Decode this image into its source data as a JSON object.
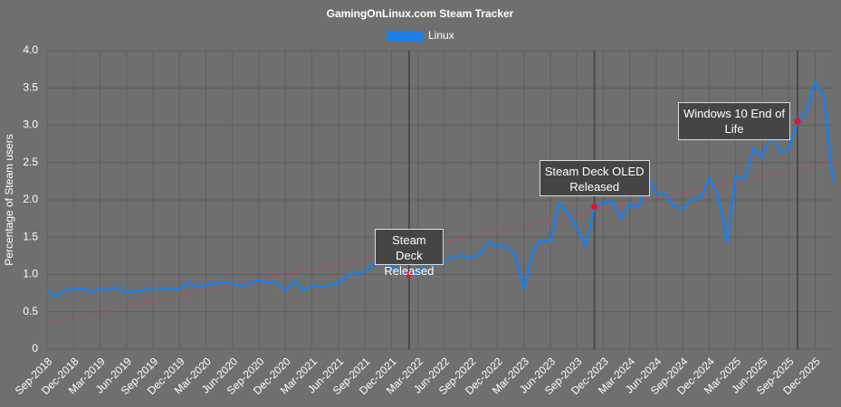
{
  "chart_data": {
    "type": "line",
    "title": "GamingOnLinux.com Steam Tracker",
    "y_label": "Percentage of Steam users",
    "categories": [
      "Sep-2018",
      null,
      null,
      "Dec-2018",
      null,
      null,
      "Mar-2019",
      null,
      null,
      "Jun-2019",
      null,
      null,
      "Sep-2019",
      null,
      null,
      "Dec-2019",
      null,
      null,
      "Mar-2020",
      null,
      null,
      "Jun-2020",
      null,
      null,
      "Sep-2020",
      null,
      null,
      "Dec-2020",
      null,
      null,
      "Mar-2021",
      null,
      null,
      "Jun-2021",
      null,
      null,
      "Sep-2021",
      null,
      null,
      "Dec-2021",
      null,
      null,
      "Mar-2022",
      null,
      null,
      "Jun-2022",
      null,
      null,
      "Sep-2022",
      null,
      null,
      "Dec-2022",
      null,
      null,
      "Mar-2023",
      null,
      null,
      "Jun-2023",
      null,
      null,
      "Sep-2023",
      null,
      null,
      "Dec-2023",
      null,
      null,
      "Mar-2024",
      null,
      null,
      "Jun-2024",
      null,
      null,
      "Sep-2024",
      null,
      null,
      "Dec-2024",
      null,
      null,
      "Mar-2025",
      null,
      null,
      "Jun-2025",
      null,
      null,
      "Sep-2025",
      null,
      null,
      "Dec-2025",
      null,
      null
    ],
    "series": [
      {
        "name": "Linux",
        "color": "#1a7fe8",
        "values": [
          0.77,
          0.71,
          0.79,
          0.81,
          0.81,
          0.76,
          0.81,
          0.8,
          0.83,
          0.75,
          0.78,
          0.79,
          0.82,
          0.82,
          0.8,
          0.81,
          0.89,
          0.83,
          0.86,
          0.88,
          0.9,
          0.88,
          0.85,
          0.88,
          0.93,
          0.89,
          0.89,
          0.78,
          0.91,
          0.8,
          0.84,
          0.84,
          0.86,
          0.88,
          0.99,
          1.01,
          1.04,
          1.13,
          1.16,
          1.1,
          1.06,
          1.0,
          1.02,
          1.14,
          1.12,
          1.18,
          1.23,
          1.26,
          1.21,
          1.27,
          1.44,
          1.38,
          1.38,
          1.27,
          0.81,
          1.32,
          1.47,
          1.44,
          1.96,
          1.82,
          1.63,
          1.38,
          1.91,
          1.96,
          1.98,
          1.75,
          1.95,
          1.9,
          2.32,
          2.08,
          2.08,
          1.92,
          1.88,
          2.01,
          2.02,
          2.29,
          2.06,
          1.42,
          2.33,
          2.27,
          2.69,
          2.57,
          2.89,
          2.64,
          2.68,
          3.05,
          3.2,
          3.58,
          3.38,
          2.23
        ]
      }
    ],
    "trendline": true,
    "trend_color": "#e0306a",
    "annotations": [
      {
        "label": "Steam Deck Released",
        "index": 41
      },
      {
        "label": "Steam Deck OLED Released",
        "index": 62
      },
      {
        "label": "Windows 10 End of Life",
        "index": 85
      }
    ],
    "ylim": [
      0,
      4
    ],
    "yticks": [
      0,
      0.5,
      {
        "value": 1,
        "label": "1.0"
      },
      1.5,
      {
        "value": 2,
        "label": "2.0"
      },
      2.5,
      {
        "value": 3,
        "label": "3.0"
      },
      3.5,
      {
        "value": 4,
        "label": "4.0"
      }
    ],
    "grid": true
  }
}
